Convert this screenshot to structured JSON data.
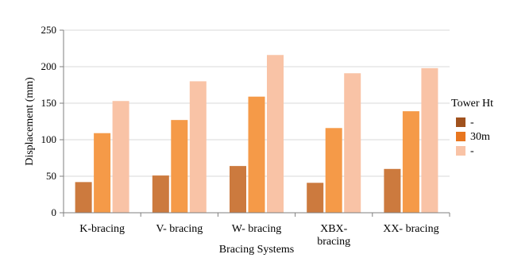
{
  "chart_data": {
    "type": "bar",
    "title": "",
    "xlabel": "Bracing  Systems",
    "ylabel": "Displacement  (mm)",
    "ylim": [
      0,
      250
    ],
    "yticks": [
      0,
      50,
      100,
      150,
      200,
      250
    ],
    "grid": true,
    "legend_position": "right",
    "legend_title": "Tower Ht",
    "categories": [
      {
        "lines": [
          "K-bracing"
        ]
      },
      {
        "lines": [
          "V- bracing"
        ]
      },
      {
        "lines": [
          "W- bracing"
        ]
      },
      {
        "lines": [
          "XBX-",
          "bracing"
        ]
      },
      {
        "lines": [
          "XX- bracing"
        ]
      }
    ],
    "series": [
      {
        "name": "-",
        "color": "#CC7A3E",
        "values": [
          42,
          51,
          64,
          41,
          60
        ]
      },
      {
        "name": "30m",
        "color": "#F59A48",
        "values": [
          109,
          127,
          159,
          116,
          139
        ]
      },
      {
        "name": "-",
        "color": "#F9C3A6",
        "values": [
          153,
          180,
          216,
          191,
          198
        ]
      }
    ],
    "legend_swatch_colors": [
      "#A0521E",
      "#E8761F",
      "#F9C3A6"
    ]
  }
}
